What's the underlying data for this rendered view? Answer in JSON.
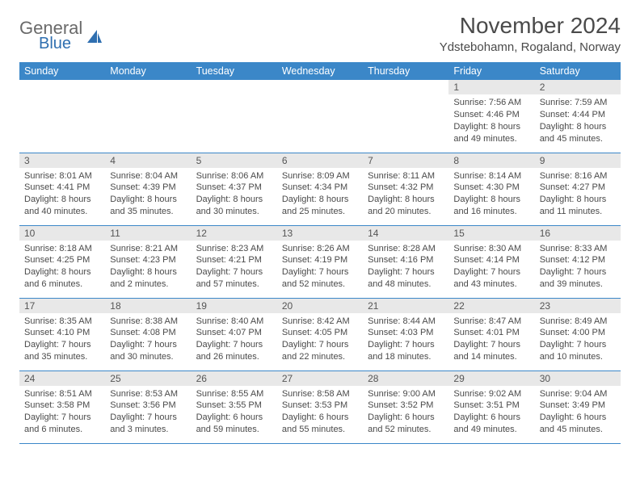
{
  "brand": {
    "text1": "General",
    "text2": "Blue"
  },
  "title": "November 2024",
  "location": "Ydstebohamn, Rogaland, Norway",
  "colors": {
    "header_bg": "#3b87c8",
    "header_text": "#ffffff",
    "daynum_bg": "#e8e8e8",
    "border": "#3b87c8",
    "body_text": "#4a4a4a",
    "logo_gray": "#6a6a6a",
    "logo_blue": "#2f6fb0",
    "page_bg": "#ffffff"
  },
  "typography": {
    "title_fontsize": 28,
    "location_fontsize": 15,
    "day_header_fontsize": 12.5,
    "daynum_fontsize": 12,
    "cell_fontsize": 11
  },
  "day_headers": [
    "Sunday",
    "Monday",
    "Tuesday",
    "Wednesday",
    "Thursday",
    "Friday",
    "Saturday"
  ],
  "weeks": [
    [
      {
        "n": "",
        "sr": "",
        "ss": "",
        "dl": ""
      },
      {
        "n": "",
        "sr": "",
        "ss": "",
        "dl": ""
      },
      {
        "n": "",
        "sr": "",
        "ss": "",
        "dl": ""
      },
      {
        "n": "",
        "sr": "",
        "ss": "",
        "dl": ""
      },
      {
        "n": "",
        "sr": "",
        "ss": "",
        "dl": ""
      },
      {
        "n": "1",
        "sr": "Sunrise: 7:56 AM",
        "ss": "Sunset: 4:46 PM",
        "dl": "Daylight: 8 hours and 49 minutes."
      },
      {
        "n": "2",
        "sr": "Sunrise: 7:59 AM",
        "ss": "Sunset: 4:44 PM",
        "dl": "Daylight: 8 hours and 45 minutes."
      }
    ],
    [
      {
        "n": "3",
        "sr": "Sunrise: 8:01 AM",
        "ss": "Sunset: 4:41 PM",
        "dl": "Daylight: 8 hours and 40 minutes."
      },
      {
        "n": "4",
        "sr": "Sunrise: 8:04 AM",
        "ss": "Sunset: 4:39 PM",
        "dl": "Daylight: 8 hours and 35 minutes."
      },
      {
        "n": "5",
        "sr": "Sunrise: 8:06 AM",
        "ss": "Sunset: 4:37 PM",
        "dl": "Daylight: 8 hours and 30 minutes."
      },
      {
        "n": "6",
        "sr": "Sunrise: 8:09 AM",
        "ss": "Sunset: 4:34 PM",
        "dl": "Daylight: 8 hours and 25 minutes."
      },
      {
        "n": "7",
        "sr": "Sunrise: 8:11 AM",
        "ss": "Sunset: 4:32 PM",
        "dl": "Daylight: 8 hours and 20 minutes."
      },
      {
        "n": "8",
        "sr": "Sunrise: 8:14 AM",
        "ss": "Sunset: 4:30 PM",
        "dl": "Daylight: 8 hours and 16 minutes."
      },
      {
        "n": "9",
        "sr": "Sunrise: 8:16 AM",
        "ss": "Sunset: 4:27 PM",
        "dl": "Daylight: 8 hours and 11 minutes."
      }
    ],
    [
      {
        "n": "10",
        "sr": "Sunrise: 8:18 AM",
        "ss": "Sunset: 4:25 PM",
        "dl": "Daylight: 8 hours and 6 minutes."
      },
      {
        "n": "11",
        "sr": "Sunrise: 8:21 AM",
        "ss": "Sunset: 4:23 PM",
        "dl": "Daylight: 8 hours and 2 minutes."
      },
      {
        "n": "12",
        "sr": "Sunrise: 8:23 AM",
        "ss": "Sunset: 4:21 PM",
        "dl": "Daylight: 7 hours and 57 minutes."
      },
      {
        "n": "13",
        "sr": "Sunrise: 8:26 AM",
        "ss": "Sunset: 4:19 PM",
        "dl": "Daylight: 7 hours and 52 minutes."
      },
      {
        "n": "14",
        "sr": "Sunrise: 8:28 AM",
        "ss": "Sunset: 4:16 PM",
        "dl": "Daylight: 7 hours and 48 minutes."
      },
      {
        "n": "15",
        "sr": "Sunrise: 8:30 AM",
        "ss": "Sunset: 4:14 PM",
        "dl": "Daylight: 7 hours and 43 minutes."
      },
      {
        "n": "16",
        "sr": "Sunrise: 8:33 AM",
        "ss": "Sunset: 4:12 PM",
        "dl": "Daylight: 7 hours and 39 minutes."
      }
    ],
    [
      {
        "n": "17",
        "sr": "Sunrise: 8:35 AM",
        "ss": "Sunset: 4:10 PM",
        "dl": "Daylight: 7 hours and 35 minutes."
      },
      {
        "n": "18",
        "sr": "Sunrise: 8:38 AM",
        "ss": "Sunset: 4:08 PM",
        "dl": "Daylight: 7 hours and 30 minutes."
      },
      {
        "n": "19",
        "sr": "Sunrise: 8:40 AM",
        "ss": "Sunset: 4:07 PM",
        "dl": "Daylight: 7 hours and 26 minutes."
      },
      {
        "n": "20",
        "sr": "Sunrise: 8:42 AM",
        "ss": "Sunset: 4:05 PM",
        "dl": "Daylight: 7 hours and 22 minutes."
      },
      {
        "n": "21",
        "sr": "Sunrise: 8:44 AM",
        "ss": "Sunset: 4:03 PM",
        "dl": "Daylight: 7 hours and 18 minutes."
      },
      {
        "n": "22",
        "sr": "Sunrise: 8:47 AM",
        "ss": "Sunset: 4:01 PM",
        "dl": "Daylight: 7 hours and 14 minutes."
      },
      {
        "n": "23",
        "sr": "Sunrise: 8:49 AM",
        "ss": "Sunset: 4:00 PM",
        "dl": "Daylight: 7 hours and 10 minutes."
      }
    ],
    [
      {
        "n": "24",
        "sr": "Sunrise: 8:51 AM",
        "ss": "Sunset: 3:58 PM",
        "dl": "Daylight: 7 hours and 6 minutes."
      },
      {
        "n": "25",
        "sr": "Sunrise: 8:53 AM",
        "ss": "Sunset: 3:56 PM",
        "dl": "Daylight: 7 hours and 3 minutes."
      },
      {
        "n": "26",
        "sr": "Sunrise: 8:55 AM",
        "ss": "Sunset: 3:55 PM",
        "dl": "Daylight: 6 hours and 59 minutes."
      },
      {
        "n": "27",
        "sr": "Sunrise: 8:58 AM",
        "ss": "Sunset: 3:53 PM",
        "dl": "Daylight: 6 hours and 55 minutes."
      },
      {
        "n": "28",
        "sr": "Sunrise: 9:00 AM",
        "ss": "Sunset: 3:52 PM",
        "dl": "Daylight: 6 hours and 52 minutes."
      },
      {
        "n": "29",
        "sr": "Sunrise: 9:02 AM",
        "ss": "Sunset: 3:51 PM",
        "dl": "Daylight: 6 hours and 49 minutes."
      },
      {
        "n": "30",
        "sr": "Sunrise: 9:04 AM",
        "ss": "Sunset: 3:49 PM",
        "dl": "Daylight: 6 hours and 45 minutes."
      }
    ]
  ]
}
